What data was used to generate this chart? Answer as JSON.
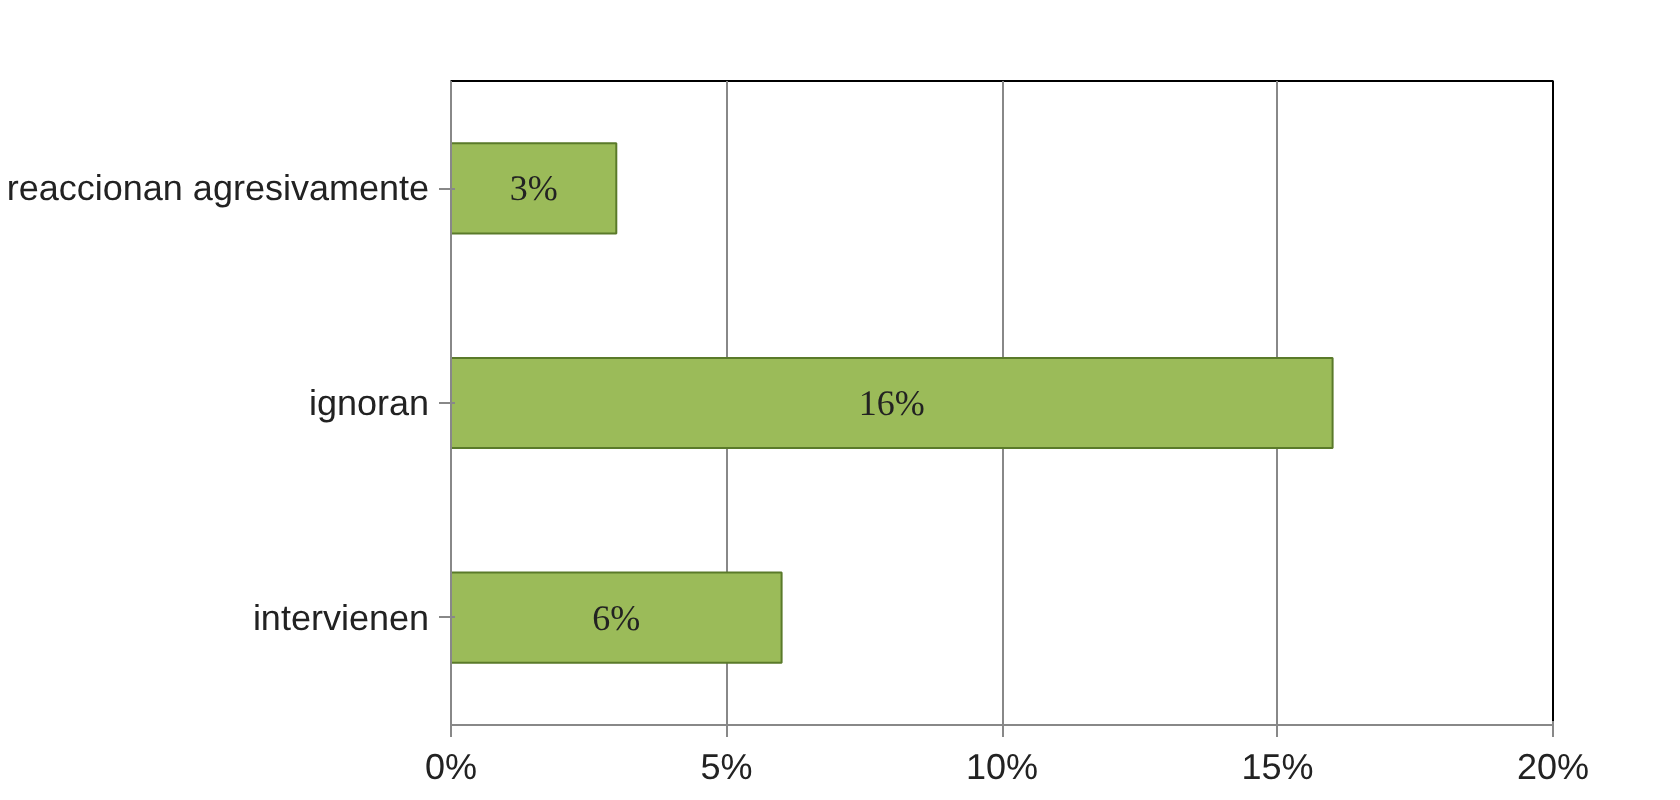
{
  "chart_data": {
    "type": "bar",
    "orientation": "horizontal",
    "categories": [
      "reaccionan agresivamente",
      "ignoran",
      "intervienen"
    ],
    "values": [
      3,
      16,
      6
    ],
    "value_labels": [
      "3%",
      "16%",
      "6%"
    ],
    "color": "#9bbb59",
    "xlim": [
      0,
      20
    ],
    "xticks": [
      {
        "value": 0,
        "label": "0%"
      },
      {
        "value": 5,
        "label": "5%"
      },
      {
        "value": 10,
        "label": "10%"
      },
      {
        "value": 15,
        "label": "15%"
      },
      {
        "value": 20,
        "label": "20%"
      }
    ],
    "grid": "x"
  }
}
